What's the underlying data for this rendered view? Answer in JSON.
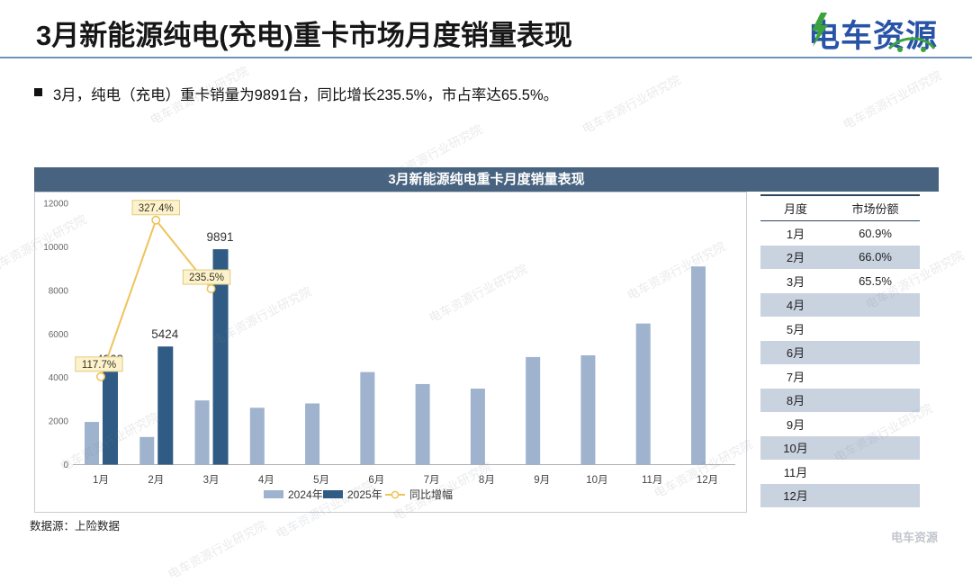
{
  "header": {
    "title": "3月新能源纯电(充电)重卡市场月度销量表现",
    "logo_text": "电车资源",
    "logo_blue": "#2853a6",
    "logo_green": "#3aa33c"
  },
  "summary": {
    "text": "3月，纯电（充电）重卡销量为9891台，同比增长235.5%，市占率达65.5%。"
  },
  "chart": {
    "title": "3月新能源纯电重卡月度销量表现"
  },
  "chart_data": {
    "type": "bar",
    "title": "3月新能源纯电重卡月度销量表现",
    "categories": [
      "1月",
      "2月",
      "3月",
      "4月",
      "5月",
      "6月",
      "7月",
      "8月",
      "9月",
      "10月",
      "11月",
      "12月"
    ],
    "series": [
      {
        "name": "2024年",
        "type": "bar",
        "color": "#9fb3ce",
        "values": [
          1960,
          1269,
          2948,
          2610,
          2810,
          4250,
          3700,
          3490,
          4940,
          5020,
          6480,
          9100
        ]
      },
      {
        "name": "2025年",
        "type": "bar",
        "color": "#2f5b84",
        "values": [
          4268,
          5424,
          9891,
          null,
          null,
          null,
          null,
          null,
          null,
          null,
          null,
          null
        ],
        "data_labels": [
          "4268",
          "5424",
          "9891"
        ]
      },
      {
        "name": "同比增幅",
        "type": "line",
        "color": "#eec45c",
        "values": [
          117.7,
          327.4,
          235.5,
          null,
          null,
          null,
          null,
          null,
          null,
          null,
          null,
          null
        ],
        "data_labels": [
          "117.7%",
          "327.4%",
          "235.5%"
        ]
      }
    ],
    "y_axis": {
      "min": 0,
      "max": 12000,
      "step": 2000,
      "ticks": [
        "12000",
        "10000",
        "8000",
        "6000",
        "4000",
        "2000",
        "0"
      ]
    },
    "secondary_axis": {
      "min": 0,
      "max": 350,
      "visible": false
    },
    "legend_position": "bottom",
    "grid": false,
    "label_box_colors": {
      "bg": "#fcf3ce",
      "border": "#e0cb7d",
      "text": "#3d3520"
    }
  },
  "table": {
    "columns": [
      "月度",
      "市场份额"
    ],
    "rows": [
      [
        "1月",
        "60.9%"
      ],
      [
        "2月",
        "66.0%"
      ],
      [
        "3月",
        "65.5%"
      ],
      [
        "4月",
        ""
      ],
      [
        "5月",
        ""
      ],
      [
        "6月",
        ""
      ],
      [
        "7月",
        ""
      ],
      [
        "8月",
        ""
      ],
      [
        "9月",
        ""
      ],
      [
        "10月",
        ""
      ],
      [
        "11月",
        ""
      ],
      [
        "12月",
        ""
      ]
    ],
    "zebra_color": "#c9d2df"
  },
  "footer": {
    "source": "数据源：上险数据",
    "corner_watermark": "电车资源"
  },
  "watermark": {
    "text": "电车资源行业研究院"
  }
}
